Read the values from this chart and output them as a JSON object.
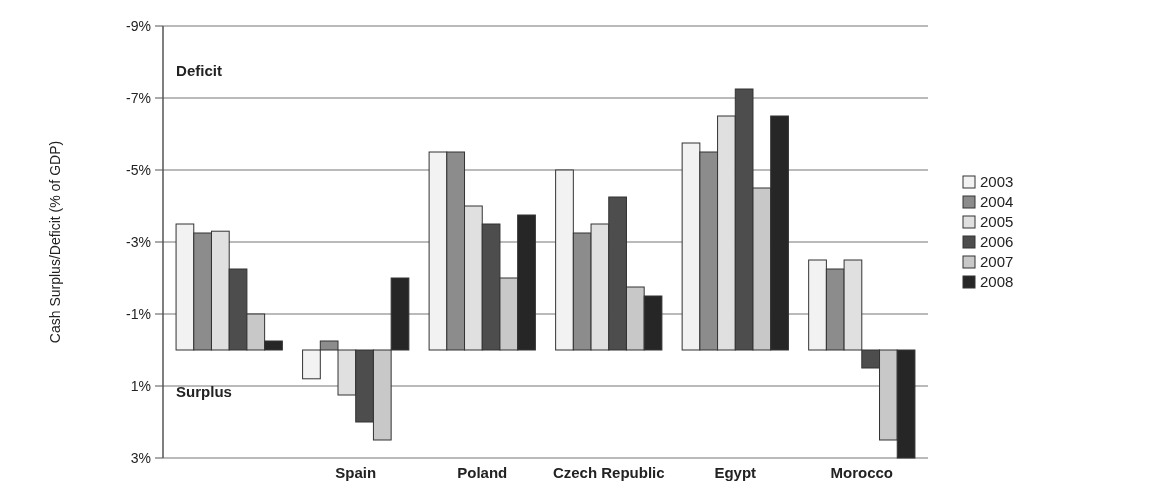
{
  "chart_data": {
    "type": "bar",
    "ylabel": "Cash Surplus/Deficit (% of GDP)",
    "categories": [
      null,
      "Spain",
      "Poland",
      "Czech Republic",
      "Egypt",
      "Morocco"
    ],
    "series": [
      {
        "name": "2003",
        "color": "#f2f2f2",
        "values": [
          -3.5,
          0.8,
          -5.5,
          -5.0,
          -5.75,
          -2.5
        ]
      },
      {
        "name": "2004",
        "color": "#8c8c8c",
        "values": [
          -3.25,
          -0.25,
          -5.5,
          -3.25,
          -5.5,
          -2.25
        ]
      },
      {
        "name": "2005",
        "color": "#e0e0e0",
        "values": [
          -3.3,
          1.25,
          -4.0,
          -3.5,
          -6.5,
          -2.5
        ]
      },
      {
        "name": "2006",
        "color": "#4d4d4d",
        "values": [
          -2.25,
          2.0,
          -3.5,
          -4.25,
          -7.25,
          0.5
        ]
      },
      {
        "name": "2007",
        "color": "#c8c8c8",
        "values": [
          -1.0,
          2.5,
          -2.0,
          -1.75,
          -4.5,
          2.5
        ]
      },
      {
        "name": "2008",
        "color": "#262626",
        "values": [
          -0.25,
          -2.0,
          -3.75,
          -1.5,
          -6.5,
          3.0
        ]
      }
    ],
    "ylim": [
      3,
      -9
    ],
    "yticks": [
      {
        "value": -9,
        "label": "-9%"
      },
      {
        "value": -7,
        "label": "-7%"
      },
      {
        "value": -5,
        "label": "-5%"
      },
      {
        "value": -3,
        "label": "-3%"
      },
      {
        "value": -1,
        "label": "-1%"
      },
      {
        "value": 1,
        "label": "1%"
      },
      {
        "value": 3,
        "label": "3%"
      }
    ],
    "grid": "y",
    "legend": "right",
    "annotations": [
      "Deficit",
      "Surplus"
    ]
  }
}
